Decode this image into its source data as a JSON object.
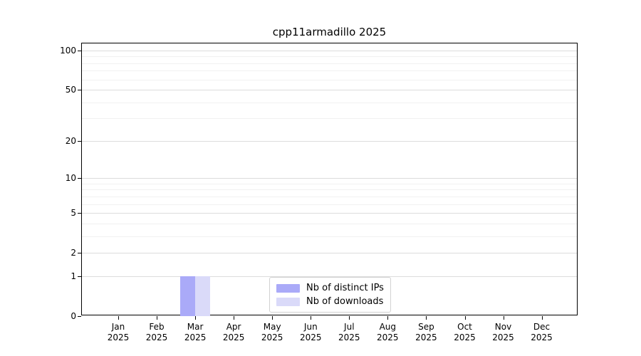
{
  "chart_data": {
    "type": "bar",
    "title": "cpp11armadillo 2025",
    "categories": [
      "Jan",
      "Feb",
      "Mar",
      "Apr",
      "May",
      "Jun",
      "Jul",
      "Aug",
      "Sep",
      "Oct",
      "Nov",
      "Dec"
    ],
    "category_year": "2025",
    "series": [
      {
        "name": "Nb of distinct IPs",
        "color": "#aaaaf8",
        "values": [
          0,
          0,
          1,
          0,
          0,
          0,
          0,
          0,
          0,
          0,
          0,
          0
        ]
      },
      {
        "name": "Nb of downloads",
        "color": "#dadaf9",
        "values": [
          0,
          0,
          1,
          0,
          0,
          0,
          0,
          0,
          0,
          0,
          0,
          0
        ]
      }
    ],
    "yticks": [
      0,
      1,
      2,
      5,
      10,
      20,
      50,
      100
    ],
    "minor_yticks": [
      3,
      4,
      6,
      7,
      8,
      9,
      30,
      40,
      60,
      70,
      80,
      90
    ],
    "yscale": "log1p",
    "ylim": [
      0,
      113
    ],
    "xlabel": "",
    "ylabel": "",
    "grid": true,
    "legend_position": "lower center"
  }
}
